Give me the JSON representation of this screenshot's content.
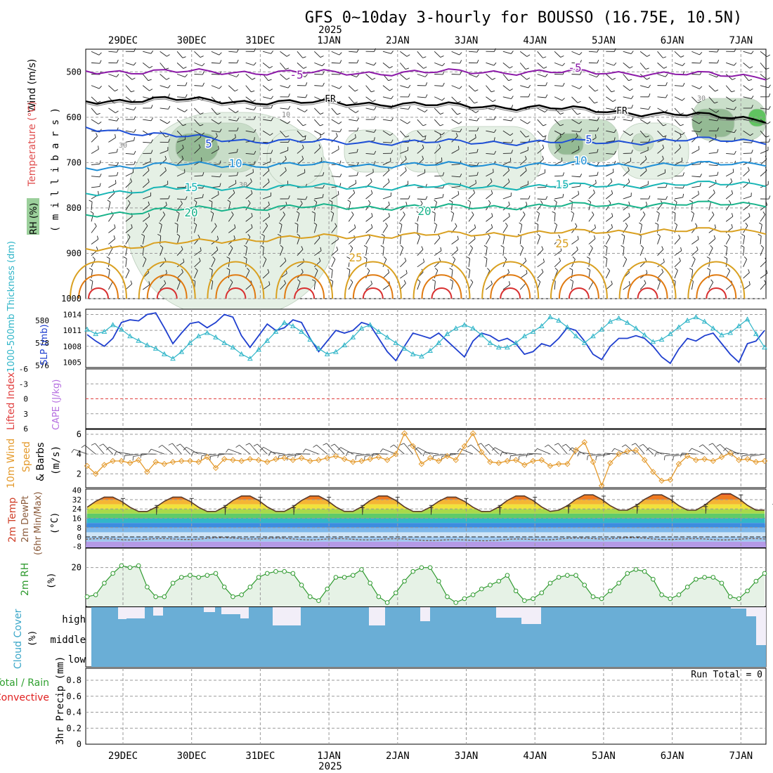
{
  "title": "GFS 0~10day 3-hourly for BOUSSO (16.75E, 10.5N)",
  "year_label": "2025",
  "dates": [
    "29DEC",
    "30DEC",
    "31DEC",
    "1JAN",
    "2JAN",
    "3JAN",
    "4JAN",
    "5JAN",
    "6JAN",
    "7JAN"
  ],
  "colors": {
    "rh_fill_light": "#e3efe3",
    "rh_fill_mid": "#c5dcc5",
    "rh_fill_dark": "#8fb78f",
    "rh_fill_bright": "#55c055",
    "temp_minus5": "#8c1aa8",
    "temp_freeze": "#000000",
    "temp_5": "#1e4fd6",
    "temp_10": "#1e8fd6",
    "temp_15": "#18b5b5",
    "temp_20": "#18b38a",
    "temp_25": "#d9a020",
    "temp_30": "#e07a10",
    "temp_35": "#d83030",
    "slp_line": "#1f3fcf",
    "thickness_line": "#2fb5c8",
    "lifted_index_zero": "#e04040",
    "wind_speed": "#e49a2c",
    "rh_line": "#2f9a2f",
    "rh_area": "#e6f2e6",
    "cloud_blue": "#6aaed6",
    "cloud_white": "#f2eef8",
    "precip_total": "#2fa02f",
    "precip_conv": "#e02020"
  },
  "upper_air": {
    "title": "Wind (m/s)",
    "temperature_label": "Temperature (°C)",
    "rh_label": "RH (%)",
    "ylabel": "( m i l l i b a r s )",
    "ticks": [
      500,
      600,
      700,
      800,
      900,
      1000
    ],
    "isotherm_labels": [
      {
        "text": "-5",
        "color": "temp_minus5"
      },
      {
        "text": "-5",
        "color": "temp_minus5"
      },
      {
        "text": "FR",
        "color": "temp_freeze"
      },
      {
        "text": "FR",
        "color": "temp_freeze"
      },
      {
        "text": "5",
        "color": "temp_5"
      },
      {
        "text": "5",
        "color": "temp_5"
      },
      {
        "text": "10",
        "color": "temp_10"
      },
      {
        "text": "10",
        "color": "temp_10"
      },
      {
        "text": "15",
        "color": "temp_15"
      },
      {
        "text": "15",
        "color": "temp_15"
      },
      {
        "text": "20",
        "color": "temp_20"
      },
      {
        "text": "20",
        "color": "temp_20"
      },
      {
        "text": "25",
        "color": "temp_25"
      },
      {
        "text": "25",
        "color": "temp_25"
      }
    ],
    "rh_labels": [
      "10",
      "30",
      "30",
      "30"
    ]
  },
  "pressure": {
    "thickness_label": "1000-500mb Thickness (dm)",
    "slp_label": "SLP (mb)",
    "thickness_ticks": [
      576,
      578,
      580
    ],
    "slp_ticks": [
      1005,
      1008,
      1011,
      1014
    ]
  },
  "stability": {
    "li_label": "Lifted Index",
    "cape_label": "CAPE (J/kg)",
    "li_ticks": [
      "-6",
      "-3",
      "0",
      "3",
      "6"
    ]
  },
  "wind10m": {
    "label_a": "10m Wind",
    "label_b": "Speed",
    "label_c": "& Barbs",
    "unit": "(m/s)",
    "ticks": [
      2,
      4,
      6
    ]
  },
  "temperature": {
    "label_a": "2m Temp",
    "label_b": "2m DewPt",
    "label_c": "(6hr Min/Max)",
    "unit": "(°C)",
    "ticks": [
      "40",
      "32",
      "24",
      "16",
      "8",
      "0",
      "-8"
    ]
  },
  "humidity": {
    "label": "2m RH",
    "unit": "(%)",
    "ticks": [
      "20"
    ]
  },
  "cloud": {
    "label": "Cloud Cover",
    "unit": "(%)",
    "levels": [
      "high",
      "middle",
      "low"
    ]
  },
  "precip": {
    "label_total": "Total / Rain",
    "label_conv": "Convective",
    "ylabel": "3hr Precip (mm)",
    "ticks": [
      "0",
      "0.2",
      "0.4",
      "0.6",
      "0.8"
    ],
    "run_total": "Run Total = 0"
  },
  "chart_data": [
    {
      "type": "line",
      "title": "Temperature (°C), Wind (m/s), RH (%)",
      "ylabel": "(millibars)",
      "ylim": [
        1000,
        450
      ],
      "x": [
        "29DEC",
        "30DEC",
        "31DEC",
        "1JAN",
        "2JAN",
        "3JAN",
        "4JAN",
        "5JAN",
        "6JAN",
        "7JAN"
      ],
      "series": [
        {
          "name": "-5",
          "values": [
            498,
            500,
            500,
            502,
            502,
            500,
            500,
            502,
            505,
            510
          ]
        },
        {
          "name": "FR",
          "values": [
            565,
            560,
            565,
            568,
            570,
            575,
            578,
            588,
            595,
            605
          ]
        },
        {
          "name": "5",
          "values": [
            622,
            640,
            650,
            655,
            655,
            655,
            655,
            655,
            650,
            652
          ]
        },
        {
          "name": "10",
          "values": [
            712,
            705,
            705,
            705,
            705,
            705,
            705,
            705,
            705,
            700
          ]
        },
        {
          "name": "15",
          "values": [
            768,
            758,
            755,
            753,
            754,
            753,
            753,
            750,
            748,
            745
          ]
        },
        {
          "name": "20",
          "values": [
            815,
            805,
            800,
            798,
            798,
            798,
            796,
            793,
            792,
            790
          ]
        },
        {
          "name": "25",
          "values": [
            890,
            880,
            870,
            865,
            860,
            858,
            855,
            852,
            850,
            850
          ]
        }
      ]
    },
    {
      "type": "line",
      "ylabel": "SLP (mb)",
      "ylim": [
        1004,
        1015
      ],
      "x": [
        "28DEC 12Z",
        "28DEC 15Z",
        "28DEC 18Z",
        "28DEC 21Z",
        "29DEC 00Z",
        "29DEC 03Z",
        "29DEC 06Z",
        "29DEC 09Z",
        "29DEC 12Z",
        "29DEC 15Z",
        "29DEC 18Z",
        "29DEC 21Z",
        "30DEC 00Z",
        "30DEC 03Z",
        "30DEC 06Z",
        "30DEC 09Z",
        "30DEC 12Z",
        "30DEC 15Z",
        "30DEC 18Z",
        "30DEC 21Z",
        "31DEC 00Z",
        "31DEC 03Z",
        "31DEC 06Z",
        "31DEC 09Z",
        "31DEC 12Z",
        "31DEC 15Z",
        "31DEC 18Z",
        "31DEC 21Z",
        "1JAN 00Z",
        "1JAN 03Z",
        "1JAN 06Z",
        "1JAN 09Z",
        "1JAN 12Z",
        "1JAN 15Z",
        "1JAN 18Z",
        "1JAN 21Z",
        "2JAN 00Z",
        "2JAN 03Z",
        "2JAN 06Z",
        "2JAN 09Z",
        "2JAN 12Z",
        "2JAN 15Z",
        "2JAN 18Z",
        "2JAN 21Z",
        "3JAN 00Z",
        "3JAN 03Z",
        "3JAN 06Z",
        "3JAN 09Z",
        "3JAN 12Z",
        "3JAN 15Z",
        "3JAN 18Z",
        "3JAN 21Z",
        "4JAN 00Z",
        "4JAN 03Z",
        "4JAN 06Z",
        "4JAN 09Z",
        "4JAN 12Z",
        "4JAN 15Z",
        "4JAN 18Z",
        "4JAN 21Z",
        "5JAN 00Z",
        "5JAN 03Z",
        "5JAN 06Z",
        "5JAN 09Z",
        "5JAN 12Z",
        "5JAN 15Z",
        "5JAN 18Z",
        "5JAN 21Z",
        "6JAN 00Z",
        "6JAN 03Z",
        "6JAN 06Z",
        "6JAN 09Z",
        "6JAN 12Z",
        "6JAN 15Z",
        "6JAN 18Z",
        "6JAN 21Z",
        "7JAN 00Z",
        "7JAN 03Z",
        "7JAN 06Z",
        "7JAN 09Z"
      ],
      "series": [
        {
          "name": "SLP",
          "values": [
            1010.2,
            1009.0,
            1008.0,
            1009.5,
            1012.5,
            1013.0,
            1012.8,
            1014.0,
            1014.3,
            1011.5,
            1008.5,
            1010.5,
            1012.3,
            1012.6,
            1011.5,
            1012.5,
            1014.0,
            1013.5,
            1010.0,
            1007.8,
            1010.0,
            1012.2,
            1011.0,
            1011.5,
            1013.0,
            1012.5,
            1009.5,
            1007.0,
            1009.0,
            1011.0,
            1010.5,
            1011.0,
            1012.5,
            1012.0,
            1009.5,
            1007.0,
            1005.3,
            1008.0,
            1010.5,
            1010.0,
            1009.5,
            1010.5,
            1009.0,
            1007.5,
            1006.0,
            1009.0,
            1010.5,
            1010.0,
            1009.0,
            1009.5,
            1008.5,
            1006.5,
            1007.0,
            1008.5,
            1008.0,
            1009.5,
            1011.5,
            1011.0,
            1009.0,
            1006.5,
            1005.5,
            1008.0,
            1009.5,
            1009.5,
            1010.0,
            1009.5,
            1008.0,
            1006.0,
            1004.8,
            1007.5,
            1009.5,
            1009.0,
            1010.0,
            1010.5,
            1008.5,
            1006.5,
            1005.0,
            1008.5,
            1009.0,
            1011.0
          ]
        },
        {
          "name": "Thickness",
          "values": [
            579.2,
            578.8,
            579.0,
            579.6,
            579.2,
            578.6,
            578.2,
            577.8,
            577.5,
            577.0,
            576.6,
            577.2,
            578.0,
            578.6,
            578.9,
            578.5,
            578.0,
            577.6,
            577.0,
            576.6,
            577.4,
            578.2,
            579.0,
            579.8,
            579.5,
            579.0,
            578.3,
            577.5,
            577.0,
            577.2,
            577.8,
            578.5,
            579.3,
            579.6,
            579.0,
            578.5,
            578.0,
            577.5,
            577.0,
            576.8,
            577.3,
            578.0,
            578.8,
            579.3,
            579.6,
            579.3,
            578.7,
            578.0,
            577.6,
            577.6,
            578.0,
            578.6,
            579.0,
            579.5,
            580.3,
            580.0,
            579.4,
            578.6,
            578.0,
            578.6,
            579.2,
            579.9,
            580.2,
            579.8,
            579.3,
            578.7,
            578.1,
            578.3,
            578.8,
            579.4,
            580.0,
            580.3,
            579.9,
            579.3,
            578.7,
            578.9,
            579.5,
            580.1,
            578.8,
            577.6
          ]
        }
      ]
    },
    {
      "type": "line",
      "ylabel": "10m Wind Speed (m/s)",
      "ylim": [
        1,
        6.5
      ],
      "x": [
        "28DEC 12Z",
        "28DEC 15Z",
        "28DEC 18Z",
        "28DEC 21Z",
        "29DEC 00Z",
        "29DEC 03Z",
        "29DEC 06Z",
        "29DEC 09Z",
        "29DEC 12Z",
        "29DEC 15Z",
        "29DEC 18Z",
        "29DEC 21Z",
        "30DEC 00Z",
        "30DEC 03Z",
        "30DEC 06Z",
        "30DEC 09Z",
        "30DEC 12Z",
        "30DEC 15Z",
        "30DEC 18Z",
        "30DEC 21Z",
        "31DEC 00Z",
        "31DEC 03Z",
        "31DEC 06Z",
        "31DEC 09Z",
        "31DEC 12Z",
        "31DEC 15Z",
        "31DEC 18Z",
        "31DEC 21Z",
        "1JAN 00Z",
        "1JAN 03Z",
        "1JAN 06Z",
        "1JAN 09Z",
        "1JAN 12Z",
        "1JAN 15Z",
        "1JAN 18Z",
        "1JAN 21Z",
        "2JAN 00Z",
        "2JAN 03Z",
        "2JAN 06Z",
        "2JAN 09Z",
        "2JAN 12Z",
        "2JAN 15Z",
        "2JAN 18Z",
        "2JAN 21Z",
        "3JAN 00Z",
        "3JAN 03Z",
        "3JAN 06Z",
        "3JAN 09Z",
        "3JAN 12Z",
        "3JAN 15Z",
        "3JAN 18Z",
        "3JAN 21Z",
        "4JAN 00Z",
        "4JAN 03Z",
        "4JAN 06Z",
        "4JAN 09Z",
        "4JAN 12Z",
        "4JAN 15Z",
        "4JAN 18Z",
        "4JAN 21Z",
        "5JAN 00Z",
        "5JAN 03Z",
        "5JAN 06Z",
        "5JAN 09Z",
        "5JAN 12Z",
        "5JAN 15Z",
        "5JAN 18Z",
        "5JAN 21Z",
        "6JAN 00Z",
        "6JAN 03Z",
        "6JAN 06Z",
        "6JAN 09Z",
        "6JAN 12Z",
        "6JAN 15Z",
        "6JAN 18Z",
        "6JAN 21Z",
        "7JAN 00Z",
        "7JAN 03Z",
        "7JAN 06Z",
        "7JAN 09Z"
      ],
      "series": [
        {
          "name": "Wind Speed",
          "values": [
            2.8,
            2.0,
            2.9,
            3.3,
            3.3,
            3.1,
            3.4,
            2.2,
            3.2,
            3.0,
            3.2,
            3.3,
            3.3,
            3.2,
            3.7,
            2.6,
            3.5,
            3.4,
            3.3,
            3.5,
            3.4,
            3.2,
            3.5,
            3.6,
            3.4,
            3.6,
            3.3,
            3.4,
            3.6,
            3.8,
            3.5,
            3.2,
            3.3,
            3.5,
            3.7,
            3.4,
            4.0,
            6.1,
            4.8,
            3.0,
            3.6,
            3.3,
            3.8,
            3.4,
            4.8,
            6.1,
            4.2,
            3.2,
            3.1,
            3.3,
            3.4,
            2.9,
            3.3,
            3.4,
            2.8,
            3.0,
            3.0,
            4.4,
            5.2,
            3.2,
            0.8,
            3.1,
            4.0,
            4.3,
            4.4,
            3.4,
            2.2,
            1.3,
            1.4,
            3.0,
            3.8,
            3.4,
            3.5,
            3.3,
            3.7,
            4.1,
            3.4,
            3.5,
            3.2,
            3.3
          ]
        }
      ]
    },
    {
      "type": "line",
      "ylabel": "2m Temp (°C)",
      "ylim": [
        -8,
        40
      ],
      "x": [
        "29DEC",
        "30DEC",
        "31DEC",
        "1JAN",
        "2JAN",
        "3JAN",
        "4JAN",
        "5JAN",
        "6JAN",
        "7JAN"
      ],
      "series": [
        {
          "name": "Max",
          "values": [
            35,
            35,
            36,
            36,
            36,
            35,
            36,
            37,
            37,
            38
          ]
        },
        {
          "name": "Min",
          "values": [
            21,
            21,
            21,
            21,
            21,
            21,
            21,
            22,
            22,
            22
          ]
        },
        {
          "name": "DewPt",
          "values": [
            -2,
            -2,
            -1,
            -2,
            -2,
            -3,
            -2,
            -1,
            -2,
            -2
          ]
        }
      ]
    },
    {
      "type": "line",
      "ylabel": "2m RH (%)",
      "ylim": [
        0,
        30
      ],
      "x": [
        "28DEC 12Z",
        "28DEC 15Z",
        "28DEC 18Z",
        "28DEC 21Z",
        "29DEC 00Z",
        "29DEC 03Z",
        "29DEC 06Z",
        "29DEC 09Z",
        "29DEC 12Z",
        "29DEC 15Z",
        "29DEC 18Z",
        "29DEC 21Z",
        "30DEC 00Z",
        "30DEC 03Z",
        "30DEC 06Z",
        "30DEC 09Z",
        "30DEC 12Z",
        "30DEC 15Z",
        "30DEC 18Z",
        "30DEC 21Z",
        "31DEC 00Z",
        "31DEC 03Z",
        "31DEC 06Z",
        "31DEC 09Z",
        "31DEC 12Z",
        "31DEC 15Z",
        "31DEC 18Z",
        "31DEC 21Z",
        "1JAN 00Z",
        "1JAN 03Z",
        "1JAN 06Z",
        "1JAN 09Z",
        "1JAN 12Z",
        "1JAN 15Z",
        "1JAN 18Z",
        "1JAN 21Z",
        "2JAN 00Z",
        "2JAN 03Z",
        "2JAN 06Z",
        "2JAN 09Z",
        "2JAN 12Z",
        "2JAN 15Z",
        "2JAN 18Z",
        "2JAN 21Z",
        "3JAN 00Z",
        "3JAN 03Z",
        "3JAN 06Z",
        "3JAN 09Z",
        "3JAN 12Z",
        "3JAN 15Z",
        "3JAN 18Z",
        "3JAN 21Z",
        "4JAN 00Z",
        "4JAN 03Z",
        "4JAN 06Z",
        "4JAN 09Z",
        "4JAN 12Z",
        "4JAN 15Z",
        "4JAN 18Z",
        "4JAN 21Z",
        "5JAN 00Z",
        "5JAN 03Z",
        "5JAN 06Z",
        "5JAN 09Z",
        "5JAN 12Z",
        "5JAN 15Z",
        "5JAN 18Z",
        "5JAN 21Z",
        "6JAN 00Z",
        "6JAN 03Z",
        "6JAN 06Z",
        "6JAN 09Z",
        "6JAN 12Z",
        "6JAN 15Z",
        "6JAN 18Z",
        "6JAN 21Z",
        "7JAN 00Z",
        "7JAN 03Z",
        "7JAN 06Z",
        "7JAN 09Z"
      ],
      "series": [
        {
          "name": "2m RH",
          "values": [
            5,
            6,
            12,
            17,
            21,
            20,
            21,
            10,
            5,
            5,
            12,
            15,
            16,
            15,
            16,
            17,
            10,
            5,
            6,
            10,
            15,
            17,
            18,
            18,
            17,
            11,
            5,
            3,
            9,
            15,
            15,
            16,
            19,
            12,
            5,
            2,
            7,
            13,
            18,
            20,
            20,
            13,
            5,
            2,
            4,
            6,
            9,
            11,
            13,
            16,
            8,
            3,
            4,
            7,
            12,
            15,
            16,
            16,
            11,
            5,
            4,
            8,
            12,
            17,
            19,
            18,
            14,
            6,
            4,
            6,
            10,
            14,
            15,
            15,
            12,
            5,
            4,
            8,
            13,
            17
          ]
        }
      ]
    },
    {
      "type": "bar",
      "ylabel": "3hr Precip (mm)",
      "ylim": [
        0,
        1
      ],
      "categories": [
        "29DEC",
        "30DEC",
        "31DEC",
        "1JAN",
        "2JAN",
        "3JAN",
        "4JAN",
        "5JAN",
        "6JAN",
        "7JAN"
      ],
      "values": [
        0,
        0,
        0,
        0,
        0,
        0,
        0,
        0,
        0,
        0
      ]
    }
  ]
}
